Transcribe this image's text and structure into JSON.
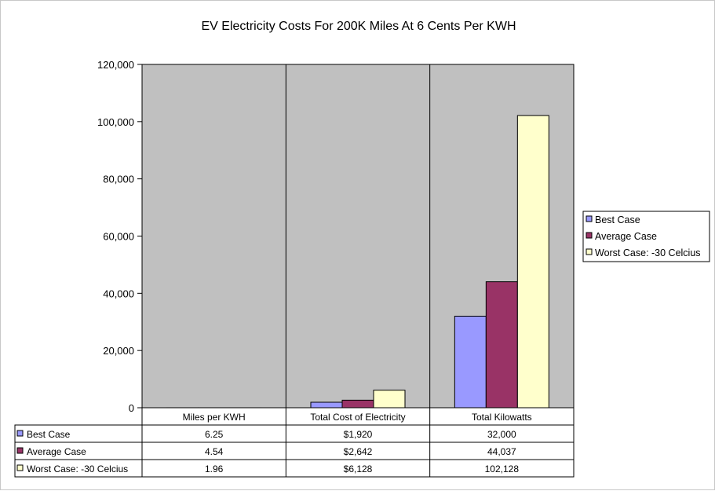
{
  "chart_data": {
    "type": "bar",
    "title": "EV Electricity Costs For 200K Miles At 6 Cents Per KWH",
    "categories": [
      "Miles per KWH",
      "Total Cost of Electricity",
      "Total Kilowatts"
    ],
    "ylim": [
      0,
      120000
    ],
    "yticks": [
      0,
      20000,
      40000,
      60000,
      80000,
      100000,
      120000
    ],
    "ytick_labels": [
      "0",
      "20,000",
      "40,000",
      "60,000",
      "80,000",
      "100,000",
      "120,000"
    ],
    "grid": false,
    "legend_position": "right",
    "plot_background": "#c0c0c0",
    "series": [
      {
        "name": "Best Case",
        "color": "#9999ff",
        "values": [
          6.25,
          1920,
          32000
        ],
        "labels": [
          "6.25",
          "$1,920",
          "32,000"
        ]
      },
      {
        "name": "Average Case",
        "color": "#993366",
        "values": [
          4.54,
          2642,
          44037
        ],
        "labels": [
          "4.54",
          "$2,642",
          "44,037"
        ]
      },
      {
        "name": "Worst Case: -30 Celcius",
        "color": "#ffffcc",
        "values": [
          1.96,
          6128,
          102128
        ],
        "labels": [
          "1.96",
          "$6,128",
          "102,128"
        ]
      }
    ]
  }
}
